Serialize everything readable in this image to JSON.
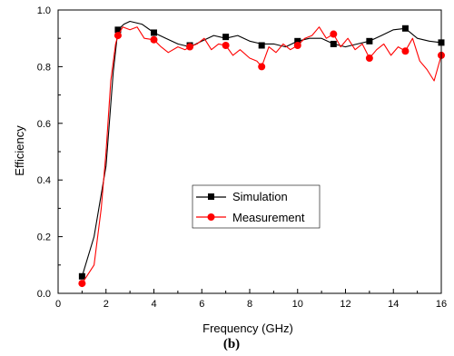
{
  "chart_data": {
    "type": "line",
    "xlabel": "Frequency (GHz)",
    "ylabel": "Efficiency",
    "xlim": [
      0,
      16
    ],
    "ylim": [
      0.0,
      1.0
    ],
    "xticks": [
      "0",
      "2",
      "4",
      "6",
      "8",
      "10",
      "12",
      "14",
      "16"
    ],
    "yticks": [
      "0.0",
      "0.2",
      "0.4",
      "0.6",
      "0.8",
      "1.0"
    ],
    "grid": false,
    "legend_position": "center-right",
    "series": [
      {
        "name": "Simulation",
        "color": "#000000",
        "marker": "square",
        "x": [
          1,
          1.5,
          2,
          2.3,
          2.5,
          2.75,
          3,
          3.5,
          4,
          4.5,
          5,
          5.5,
          6,
          6.5,
          7,
          7.5,
          8,
          8.5,
          9,
          9.5,
          10,
          10.5,
          11,
          11.5,
          12,
          12.5,
          13,
          13.5,
          14,
          14.5,
          15,
          15.5,
          16
        ],
        "y": [
          0.06,
          0.2,
          0.45,
          0.78,
          0.93,
          0.95,
          0.96,
          0.95,
          0.92,
          0.9,
          0.88,
          0.87,
          0.89,
          0.91,
          0.9,
          0.91,
          0.89,
          0.88,
          0.88,
          0.87,
          0.89,
          0.9,
          0.9,
          0.88,
          0.87,
          0.88,
          0.89,
          0.91,
          0.93,
          0.935,
          0.9,
          0.89,
          0.885
        ],
        "marker_x": [
          1,
          2.5,
          4,
          5.5,
          7,
          8.5,
          10,
          11.5,
          13,
          14.5,
          16
        ],
        "marker_y": [
          0.06,
          0.93,
          0.92,
          0.875,
          0.905,
          0.875,
          0.89,
          0.88,
          0.89,
          0.935,
          0.885
        ]
      },
      {
        "name": "Measurement",
        "color": "#ff0000",
        "marker": "circle",
        "x": [
          1,
          1.5,
          1.8,
          2,
          2.2,
          2.4,
          2.5,
          2.7,
          3,
          3.3,
          3.6,
          4,
          4.3,
          4.6,
          5,
          5.3,
          5.5,
          5.8,
          6.1,
          6.4,
          6.7,
          7,
          7.3,
          7.6,
          8,
          8.3,
          8.5,
          8.8,
          9.1,
          9.4,
          9.7,
          10,
          10.3,
          10.6,
          10.9,
          11.2,
          11.5,
          11.8,
          12.1,
          12.4,
          12.7,
          13,
          13.3,
          13.6,
          13.9,
          14.2,
          14.5,
          14.8,
          15.1,
          15.4,
          15.7,
          16
        ],
        "y": [
          0.035,
          0.1,
          0.3,
          0.5,
          0.75,
          0.88,
          0.91,
          0.94,
          0.93,
          0.94,
          0.9,
          0.895,
          0.87,
          0.85,
          0.87,
          0.86,
          0.87,
          0.88,
          0.9,
          0.86,
          0.88,
          0.875,
          0.84,
          0.86,
          0.83,
          0.82,
          0.8,
          0.87,
          0.85,
          0.88,
          0.86,
          0.875,
          0.9,
          0.91,
          0.94,
          0.9,
          0.915,
          0.87,
          0.9,
          0.86,
          0.88,
          0.83,
          0.86,
          0.88,
          0.84,
          0.87,
          0.855,
          0.9,
          0.82,
          0.79,
          0.75,
          0.84
        ],
        "marker_x": [
          1,
          2.5,
          4,
          5.5,
          7,
          8.5,
          10,
          11.5,
          13,
          14.5,
          16
        ],
        "marker_y": [
          0.035,
          0.91,
          0.895,
          0.87,
          0.875,
          0.8,
          0.875,
          0.915,
          0.83,
          0.855,
          0.84
        ]
      }
    ]
  },
  "caption": "(b)"
}
